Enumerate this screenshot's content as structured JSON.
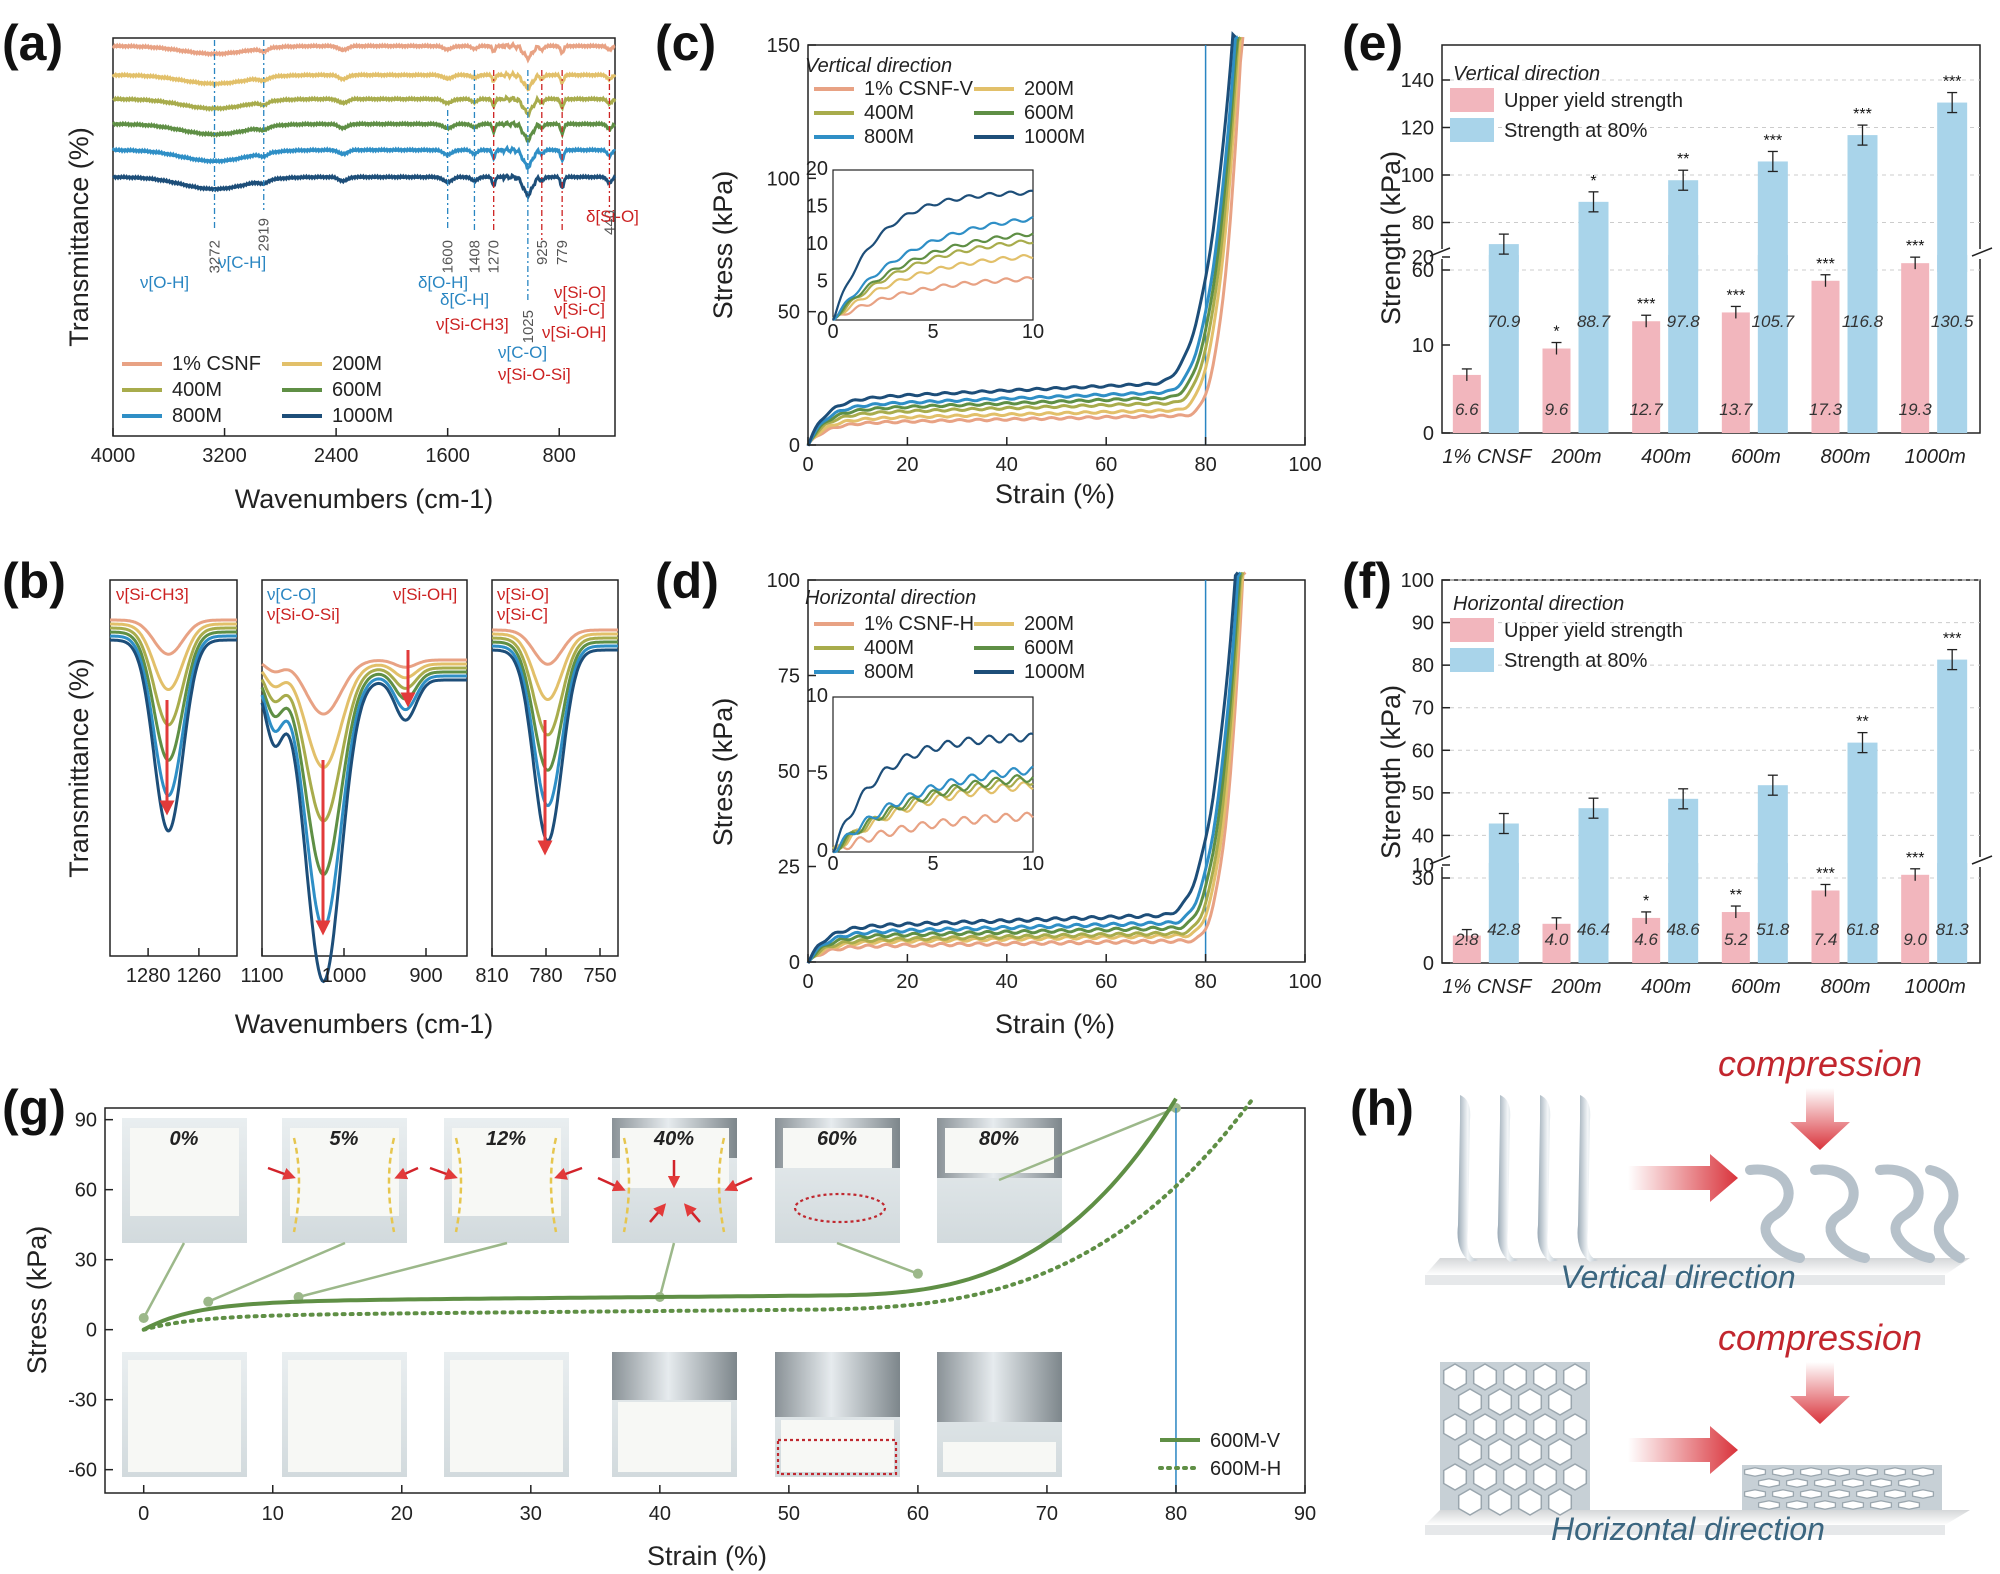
{
  "panels": {
    "a": "(a)",
    "b": "(b)",
    "c": "(c)",
    "d": "(d)",
    "e": "(e)",
    "f": "(f)",
    "g": "(g)",
    "h": "(h)"
  },
  "colors": {
    "csnf": "#e8a284",
    "m200": "#e2c06a",
    "m400": "#a8ac4c",
    "m600": "#5f8f45",
    "m800": "#2f8fc6",
    "m1000": "#1d4e79",
    "pink": "#f2b6bd",
    "lightblue": "#a9d4ea",
    "red": "#cc2222",
    "blue": "#2a86c2"
  },
  "chart_data": [
    {
      "id": "a",
      "type": "line",
      "title": "",
      "xlabel": "Wavenumbers (cm-1)",
      "ylabel": "Transmittance (%)",
      "xlim": [
        4000,
        400
      ],
      "xticks": [
        "4000",
        "3200",
        "2400",
        "1600",
        "800"
      ],
      "legend": [
        "1% CSNF",
        "200M",
        "400M",
        "600M",
        "800M",
        "1000M"
      ],
      "bands": [
        {
          "num": "3272",
          "label": "[O-H]",
          "mode": "ν",
          "group": "blue"
        },
        {
          "num": "2919",
          "label": "[C-H]",
          "mode": "ν",
          "group": "blue"
        },
        {
          "num": "1600",
          "label": "[O-H]",
          "mode": "δ",
          "group": "blue"
        },
        {
          "num": "1408",
          "label": "[C-H]",
          "mode": "δ",
          "group": "blue"
        },
        {
          "num": "1270",
          "label": "[Si-CH3]",
          "mode": "ν",
          "group": "red"
        },
        {
          "num": "1025",
          "label": "[C-O]",
          "mode": "ν",
          "group": "blue"
        },
        {
          "num": "1025b",
          "label": "[Si-O-Si]",
          "mode": "ν",
          "group": "red"
        },
        {
          "num": "925",
          "label": "[Si-OH]",
          "mode": "ν",
          "group": "red"
        },
        {
          "num": "779",
          "label": "[Si-O]",
          "mode": "ν",
          "group": "red"
        },
        {
          "num": "779b",
          "label": "[Si-C]",
          "mode": "ν",
          "group": "red"
        },
        {
          "num": "440",
          "label": "[Si-O]",
          "mode": "δ",
          "group": "red"
        }
      ]
    },
    {
      "id": "b",
      "type": "line",
      "xlabel": "Wavenumbers (cm-1)",
      "ylabel": "Transmittance (%)",
      "subpanels": [
        {
          "labels": [
            "ν[Si-CH3]"
          ],
          "xticks": [
            "1280",
            "1260"
          ]
        },
        {
          "labels": [
            "ν[C-O]",
            "ν[Si-O-Si]",
            "ν[Si-OH]"
          ],
          "xticks": [
            "1100",
            "1000",
            "900"
          ]
        },
        {
          "labels": [
            "ν[Si-O]",
            "ν[Si-C]"
          ],
          "xticks": [
            "810",
            "780",
            "750"
          ]
        }
      ]
    },
    {
      "id": "c",
      "type": "line",
      "inset_title": "Vertical direction",
      "xlabel": "Strain (%)",
      "ylabel": "Stress (kPa)",
      "xlim": [
        0,
        100
      ],
      "ylim": [
        0,
        150
      ],
      "xticks": [
        "0",
        "20",
        "40",
        "60",
        "80",
        "100"
      ],
      "yticks": [
        "0",
        "50",
        "100",
        "150"
      ],
      "legend": [
        "1% CSNF-V",
        "200M",
        "400M",
        "600M",
        "800M",
        "1000M"
      ],
      "plateau_kPa": [
        8,
        9.5,
        11.5,
        13,
        14.5,
        17
      ],
      "onset_strain": [
        75,
        73,
        72,
        71,
        70,
        68
      ],
      "inset": {
        "xticks": [
          "0",
          "5",
          "10"
        ],
        "yticks": [
          "0",
          "5",
          "10",
          "15",
          "20"
        ],
        "end_values": [
          5.5,
          8.5,
          10.5,
          11.5,
          13.5,
          17
        ]
      }
    },
    {
      "id": "d",
      "type": "line",
      "inset_title": "Horizontal direction",
      "xlabel": "Strain (%)",
      "ylabel": "Stress (kPa)",
      "xlim": [
        0,
        100
      ],
      "ylim": [
        0,
        100
      ],
      "xticks": [
        "0",
        "20",
        "40",
        "60",
        "80",
        "100"
      ],
      "yticks": [
        "0",
        "25",
        "50",
        "75",
        "100"
      ],
      "legend": [
        "1% CSNF-H",
        "200M",
        "400M",
        "600M",
        "800M",
        "1000M"
      ],
      "plateau_kPa": [
        4,
        5,
        5.5,
        6.5,
        7.5,
        9
      ],
      "onset_strain": [
        76,
        75,
        74,
        73,
        72,
        70
      ],
      "inset": {
        "xticks": [
          "0",
          "5",
          "10"
        ],
        "yticks": [
          "0",
          "5",
          "10"
        ],
        "end_values": [
          2.3,
          4.3,
          4.6,
          4.8,
          5.3,
          7.4
        ]
      }
    },
    {
      "id": "e",
      "type": "bar",
      "legend_title": "Vertical direction",
      "ylabel": "Strength (kPa)",
      "categories": [
        "1% CNSF",
        "200m",
        "400m",
        "600m",
        "800m",
        "1000m"
      ],
      "series": [
        {
          "name": "Upper yield strength",
          "values": [
            6.6,
            9.6,
            12.7,
            13.7,
            17.3,
            19.3
          ],
          "stars": [
            "",
            "*",
            "***",
            "***",
            "***",
            "***"
          ]
        },
        {
          "name": "Strength at 80%",
          "values": [
            70.9,
            88.7,
            97.8,
            105.7,
            116.8,
            130.5
          ],
          "stars": [
            "",
            "*",
            "**",
            "***",
            "***",
            "***"
          ]
        }
      ],
      "lower_ticks": [
        "0",
        "10",
        "20"
      ],
      "upper_ticks": [
        "60",
        "80",
        "100",
        "120",
        "140"
      ]
    },
    {
      "id": "f",
      "type": "bar",
      "legend_title": "Horizontal direction",
      "ylabel": "Strength (kPa)",
      "categories": [
        "1% CNSF",
        "200m",
        "400m",
        "600m",
        "800m",
        "1000m"
      ],
      "series": [
        {
          "name": "Upper yield strength",
          "values": [
            2.8,
            4.0,
            4.6,
            5.2,
            7.4,
            9.0
          ],
          "stars": [
            "",
            "",
            "*",
            "**",
            "***",
            "***"
          ]
        },
        {
          "name": "Strength at 80%",
          "values": [
            42.8,
            46.4,
            48.6,
            51.8,
            61.8,
            81.3
          ],
          "stars": [
            "",
            "",
            "",
            "",
            "**",
            "***"
          ]
        }
      ],
      "lower_ticks": [
        "0",
        "10"
      ],
      "upper_ticks": [
        "30",
        "40",
        "50",
        "60",
        "70",
        "80",
        "90",
        "100"
      ]
    },
    {
      "id": "g",
      "type": "line",
      "xlabel": "Strain (%)",
      "ylabel": "Stress (kPa)",
      "xlim": [
        -3,
        90
      ],
      "ylim": [
        -70,
        95
      ],
      "xticks": [
        "0",
        "10",
        "20",
        "30",
        "40",
        "50",
        "60",
        "70",
        "80",
        "90"
      ],
      "yticks": [
        "90",
        "60",
        "30",
        "0",
        "-30",
        "-60"
      ],
      "legend": [
        "600M-V",
        "600M-H"
      ],
      "photo_labels": [
        "0%",
        "5%",
        "12%",
        "40%",
        "60%",
        "80%"
      ]
    }
  ],
  "h": {
    "compression": "compression",
    "vertical": "Vertical direction",
    "horizontal": "Horizontal direction"
  }
}
